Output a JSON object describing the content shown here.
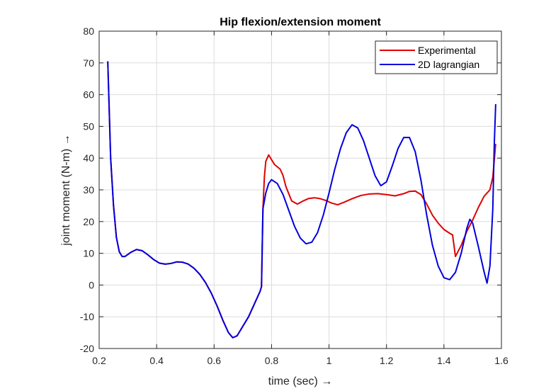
{
  "chart_data": {
    "type": "line",
    "title": "Hip flexion/extension moment",
    "xlabel": "time (sec) →",
    "ylabel": "joint moment (N-m) →",
    "xlim": [
      0.2,
      1.6
    ],
    "ylim": [
      -20,
      80
    ],
    "xticks": [
      0.2,
      0.4,
      0.6,
      0.8,
      1,
      1.2,
      1.4,
      1.6
    ],
    "xtick_labels": [
      "0.2",
      "0.4",
      "0.6",
      "0.8",
      "1",
      "1.2",
      "1.4",
      "1.6"
    ],
    "yticks": [
      -20,
      -10,
      0,
      10,
      20,
      30,
      40,
      50,
      60,
      70,
      80
    ],
    "ytick_labels": [
      "-20",
      "-10",
      "0",
      "10",
      "20",
      "30",
      "40",
      "50",
      "60",
      "70",
      "80"
    ],
    "grid": true,
    "legend_position": "top-right",
    "series": [
      {
        "name": "Experimental",
        "color": "#e00000",
        "points": [
          [
            0.23,
            70.5
          ],
          [
            0.24,
            40
          ],
          [
            0.25,
            25
          ],
          [
            0.26,
            15
          ],
          [
            0.27,
            10.5
          ],
          [
            0.28,
            9
          ],
          [
            0.29,
            9
          ],
          [
            0.31,
            10.3
          ],
          [
            0.33,
            11.2
          ],
          [
            0.35,
            10.8
          ],
          [
            0.37,
            9.5
          ],
          [
            0.39,
            8
          ],
          [
            0.41,
            6.9
          ],
          [
            0.43,
            6.6
          ],
          [
            0.45,
            6.8
          ],
          [
            0.47,
            7.3
          ],
          [
            0.49,
            7.2
          ],
          [
            0.51,
            6.6
          ],
          [
            0.53,
            5.3
          ],
          [
            0.55,
            3.4
          ],
          [
            0.57,
            0.8
          ],
          [
            0.59,
            -2.5
          ],
          [
            0.61,
            -6.5
          ],
          [
            0.63,
            -11
          ],
          [
            0.65,
            -15
          ],
          [
            0.665,
            -16.6
          ],
          [
            0.68,
            -16
          ],
          [
            0.7,
            -13
          ],
          [
            0.72,
            -10
          ],
          [
            0.74,
            -6
          ],
          [
            0.76,
            -2
          ],
          [
            0.765,
            -0.5
          ],
          [
            0.77,
            24
          ],
          [
            0.775,
            34
          ],
          [
            0.78,
            39
          ],
          [
            0.79,
            41
          ],
          [
            0.8,
            39.5
          ],
          [
            0.81,
            38
          ],
          [
            0.83,
            36.5
          ],
          [
            0.84,
            34.5
          ],
          [
            0.85,
            31
          ],
          [
            0.87,
            26.5
          ],
          [
            0.89,
            25.5
          ],
          [
            0.91,
            26.5
          ],
          [
            0.93,
            27.3
          ],
          [
            0.95,
            27.5
          ],
          [
            0.97,
            27.2
          ],
          [
            0.99,
            26.6
          ],
          [
            1.01,
            25.8
          ],
          [
            1.03,
            25.3
          ],
          [
            1.05,
            26
          ],
          [
            1.08,
            27.2
          ],
          [
            1.11,
            28.2
          ],
          [
            1.14,
            28.7
          ],
          [
            1.17,
            28.8
          ],
          [
            1.2,
            28.5
          ],
          [
            1.23,
            28.1
          ],
          [
            1.26,
            28.8
          ],
          [
            1.28,
            29.5
          ],
          [
            1.3,
            29.6
          ],
          [
            1.32,
            28.5
          ],
          [
            1.34,
            25.5
          ],
          [
            1.36,
            22
          ],
          [
            1.38,
            19.5
          ],
          [
            1.4,
            17.5
          ],
          [
            1.42,
            16.3
          ],
          [
            1.43,
            15.8
          ],
          [
            1.44,
            9
          ],
          [
            1.46,
            12.5
          ],
          [
            1.48,
            17
          ],
          [
            1.5,
            20.5
          ],
          [
            1.52,
            24.5
          ],
          [
            1.54,
            28
          ],
          [
            1.56,
            30
          ],
          [
            1.57,
            34
          ],
          [
            1.58,
            44.5
          ]
        ]
      },
      {
        "name": "2D lagrangian",
        "color": "#0000e0",
        "points": [
          [
            0.23,
            70.5
          ],
          [
            0.24,
            40
          ],
          [
            0.25,
            25
          ],
          [
            0.26,
            15
          ],
          [
            0.27,
            10.5
          ],
          [
            0.28,
            9
          ],
          [
            0.29,
            9
          ],
          [
            0.31,
            10.3
          ],
          [
            0.33,
            11.2
          ],
          [
            0.35,
            10.8
          ],
          [
            0.37,
            9.5
          ],
          [
            0.39,
            8
          ],
          [
            0.41,
            6.9
          ],
          [
            0.43,
            6.6
          ],
          [
            0.45,
            6.8
          ],
          [
            0.47,
            7.3
          ],
          [
            0.49,
            7.2
          ],
          [
            0.51,
            6.6
          ],
          [
            0.53,
            5.3
          ],
          [
            0.55,
            3.4
          ],
          [
            0.57,
            0.8
          ],
          [
            0.59,
            -2.5
          ],
          [
            0.61,
            -6.5
          ],
          [
            0.63,
            -11
          ],
          [
            0.65,
            -15
          ],
          [
            0.665,
            -16.6
          ],
          [
            0.68,
            -16
          ],
          [
            0.7,
            -13
          ],
          [
            0.72,
            -10
          ],
          [
            0.74,
            -6
          ],
          [
            0.76,
            -2
          ],
          [
            0.765,
            -0.5
          ],
          [
            0.77,
            24
          ],
          [
            0.78,
            29
          ],
          [
            0.79,
            32
          ],
          [
            0.8,
            33.2
          ],
          [
            0.82,
            32
          ],
          [
            0.84,
            28.5
          ],
          [
            0.86,
            23.5
          ],
          [
            0.88,
            18.5
          ],
          [
            0.9,
            14.8
          ],
          [
            0.92,
            13
          ],
          [
            0.94,
            13.5
          ],
          [
            0.96,
            16.5
          ],
          [
            0.98,
            22
          ],
          [
            1.0,
            29
          ],
          [
            1.02,
            36.5
          ],
          [
            1.04,
            43
          ],
          [
            1.06,
            48
          ],
          [
            1.08,
            50.5
          ],
          [
            1.1,
            49.5
          ],
          [
            1.12,
            45.5
          ],
          [
            1.14,
            40
          ],
          [
            1.16,
            34.5
          ],
          [
            1.18,
            31.3
          ],
          [
            1.2,
            32.5
          ],
          [
            1.22,
            37.5
          ],
          [
            1.24,
            43
          ],
          [
            1.26,
            46.5
          ],
          [
            1.28,
            46.5
          ],
          [
            1.3,
            42
          ],
          [
            1.32,
            33
          ],
          [
            1.34,
            22
          ],
          [
            1.36,
            12.5
          ],
          [
            1.38,
            6
          ],
          [
            1.4,
            2.3
          ],
          [
            1.42,
            1.7
          ],
          [
            1.44,
            4
          ],
          [
            1.46,
            10
          ],
          [
            1.48,
            18
          ],
          [
            1.49,
            20.7
          ],
          [
            1.5,
            19.5
          ],
          [
            1.52,
            12
          ],
          [
            1.54,
            4
          ],
          [
            1.55,
            0.6
          ],
          [
            1.56,
            6
          ],
          [
            1.57,
            24
          ],
          [
            1.575,
            44
          ],
          [
            1.58,
            57
          ]
        ]
      }
    ]
  }
}
